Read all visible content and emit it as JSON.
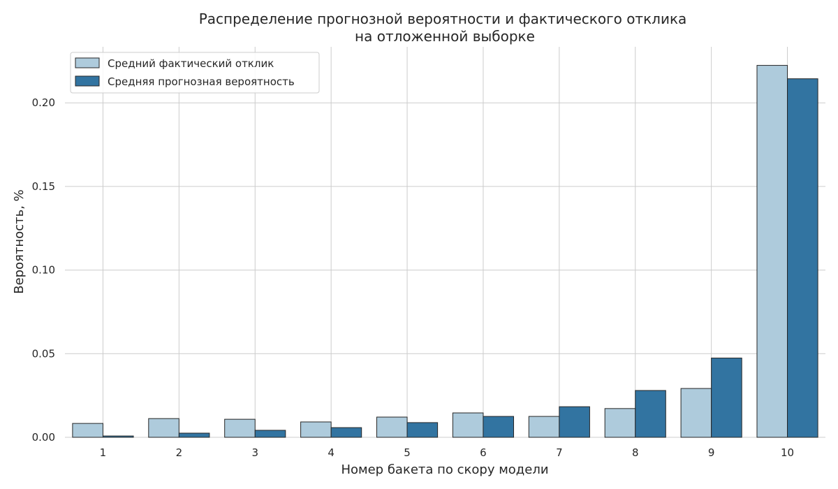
{
  "chart_data": {
    "type": "bar",
    "title_line1": "Распределение прогнозной вероятности и фактического отклика",
    "title_line2": "на отложенной выборке",
    "xlabel": "Номер бакета по скору модели",
    "ylabel": "Вероятность, %",
    "categories": [
      "1",
      "2",
      "3",
      "4",
      "5",
      "6",
      "7",
      "8",
      "9",
      "10"
    ],
    "ylim": [
      0,
      0.2335
    ],
    "yticks": [
      0.0,
      0.05,
      0.1,
      0.15,
      0.2
    ],
    "ytick_labels": [
      "0.00",
      "0.05",
      "0.10",
      "0.15",
      "0.20"
    ],
    "grid": true,
    "legend_position": "top-left",
    "series": [
      {
        "name": "Средний фактический отклик",
        "color": "#aecbdc",
        "values": [
          0.0083,
          0.0112,
          0.0108,
          0.0092,
          0.0121,
          0.0146,
          0.0125,
          0.0172,
          0.0292,
          0.2224
        ]
      },
      {
        "name": "Средняя прогнозная вероятность",
        "color": "#3274a1",
        "values": [
          0.0008,
          0.0025,
          0.0042,
          0.0058,
          0.0088,
          0.0125,
          0.0183,
          0.028,
          0.0474,
          0.2144
        ]
      }
    ]
  }
}
